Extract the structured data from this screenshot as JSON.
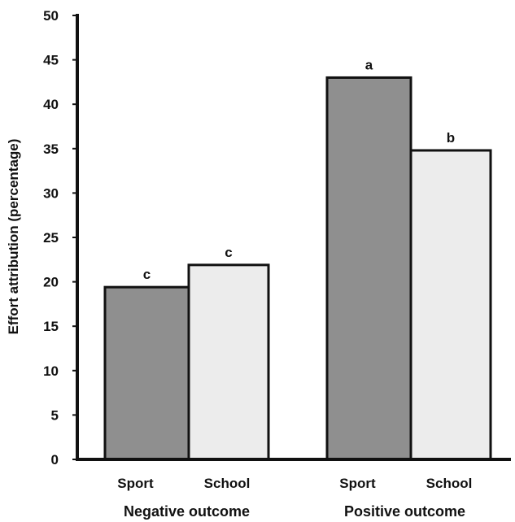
{
  "chart_data": {
    "type": "bar",
    "title": "",
    "xlabel": "",
    "ylabel": "Effort attribution (percentage)",
    "ylim": [
      0,
      50
    ],
    "yticks": [
      0,
      5,
      10,
      15,
      20,
      25,
      30,
      35,
      40,
      45,
      50
    ],
    "grid": false,
    "groups": [
      {
        "name": "Negative outcome",
        "bars": [
          {
            "category": "Sport",
            "value": 19.4,
            "label": "c",
            "color": "#8f8f8f"
          },
          {
            "category": "School",
            "value": 21.9,
            "label": "c",
            "color": "#ececec"
          }
        ]
      },
      {
        "name": "Positive outcome",
        "bars": [
          {
            "category": "Sport",
            "value": 43.0,
            "label": "a",
            "color": "#8f8f8f"
          },
          {
            "category": "School",
            "value": 34.8,
            "label": "b",
            "color": "#ececec"
          }
        ]
      }
    ]
  }
}
